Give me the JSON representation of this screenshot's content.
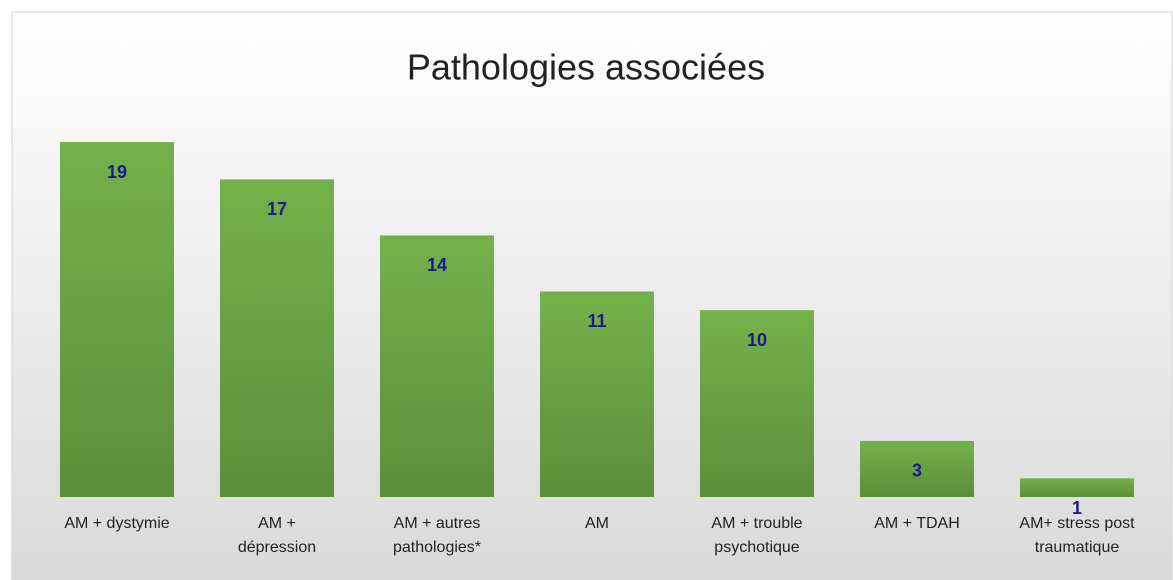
{
  "chart_data": {
    "type": "bar",
    "title": "Pathologies associées",
    "categories": [
      "AM + dystymie",
      "AM + dépression",
      "AM + autres pathologies*",
      "AM",
      "AM + trouble psychotique",
      "AM + TDAH",
      "AM+ stress post traumatique"
    ],
    "values": [
      19,
      17,
      14,
      11,
      10,
      3,
      1
    ],
    "color": "#70ad47",
    "label_color": "#1a1a8c"
  }
}
